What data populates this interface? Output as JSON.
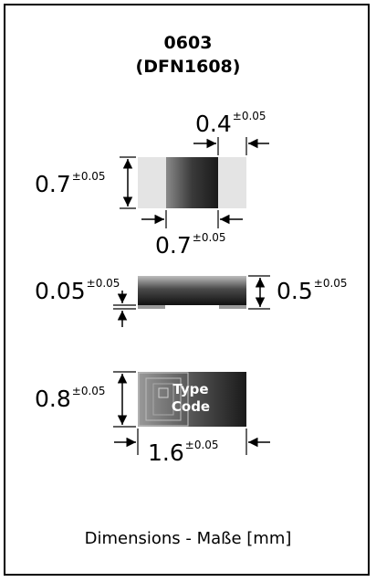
{
  "header": {
    "package": "0603",
    "alt_package": "(DFN1608)"
  },
  "top_view": {
    "pad_width": "0.4",
    "pad_width_tol": "±0.05",
    "body_width": "0.7",
    "body_width_tol": "±0.05",
    "body_length": "0.7",
    "body_length_tol": "±0.05"
  },
  "side_view": {
    "pad_thickness": "0.05",
    "pad_thickness_tol": "±0.05",
    "height": "0.5",
    "height_tol": "±0.05"
  },
  "bottom_view": {
    "width": "0.8",
    "width_tol": "±0.05",
    "length": "1.6",
    "length_tol": "±0.05",
    "marking_line1": "Type",
    "marking_line2": "Code"
  },
  "caption": "Dimensions - Maße [mm]"
}
